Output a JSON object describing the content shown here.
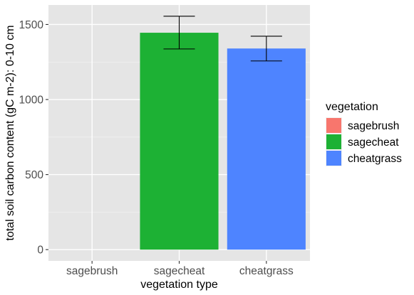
{
  "chart_data": {
    "type": "bar",
    "categories": [
      "sagebrush",
      "sagecheat",
      "cheatgrass"
    ],
    "values": [
      0,
      1445,
      1340
    ],
    "error_bars": {
      "lower": [
        null,
        1337,
        1257
      ],
      "upper": [
        null,
        1555,
        1422
      ]
    },
    "colors": [
      "#F8766D",
      "#1DB134",
      "#4E84FF"
    ],
    "xlabel": "vegetation type",
    "ylabel": "total soil carbon content (gC m-2): 0-10 cm",
    "ylim": [
      -75,
      1630
    ],
    "yticks": [
      0,
      500,
      1000,
      1500
    ],
    "ytick_labels": [
      "0",
      "500",
      "1000",
      "1500"
    ],
    "grid": true,
    "panel_background": "#E5E5E5",
    "legend": {
      "title": "vegetation",
      "position": "right",
      "entries": [
        "sagebrush",
        "sagecheat",
        "cheatgrass"
      ]
    }
  }
}
